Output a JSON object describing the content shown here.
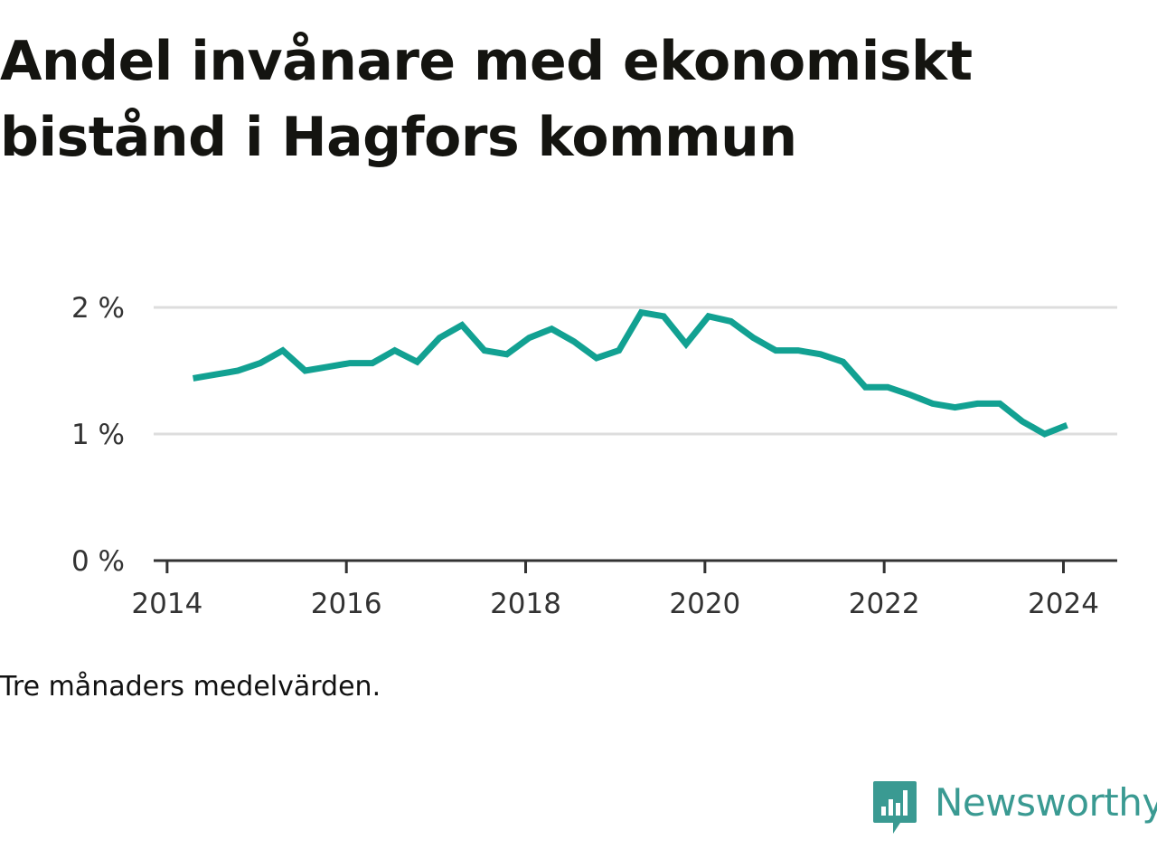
{
  "title": {
    "line1": "Andel invånare med ekonomiskt",
    "line2": "bistånd i Hagfors kommun"
  },
  "note": "Tre månaders medelvärden.",
  "brand": {
    "name": "Newsworthy",
    "icon": "bar-chart-speech-bubble-icon",
    "color": "#3a9a92"
  },
  "chart_data": {
    "type": "line",
    "title": "Andel invånare med ekonomiskt bistånd i Hagfors kommun",
    "xlabel": "",
    "ylabel": "",
    "y_ticks": [
      {
        "value": 0,
        "label": "0 %"
      },
      {
        "value": 1,
        "label": "1 %"
      },
      {
        "value": 2,
        "label": "2 %"
      }
    ],
    "x_ticks": [
      {
        "value": 2014,
        "label": "2014"
      },
      {
        "value": 2016,
        "label": "2016"
      },
      {
        "value": 2018,
        "label": "2018"
      },
      {
        "value": 2020,
        "label": "2020"
      },
      {
        "value": 2022,
        "label": "2022"
      },
      {
        "value": 2024,
        "label": "2024"
      }
    ],
    "xlim": [
      2013.85,
      2024.6
    ],
    "ylim": [
      0,
      2
    ],
    "grid": true,
    "line_color": "#12a192",
    "series": [
      {
        "x": [
          2014.29,
          2014.54,
          2014.79,
          2015.04,
          2015.29,
          2015.54,
          2015.79,
          2016.04,
          2016.29,
          2016.54,
          2016.79,
          2017.04,
          2017.29,
          2017.54,
          2017.79,
          2018.04,
          2018.29,
          2018.54,
          2018.79,
          2019.04,
          2019.29,
          2019.54,
          2019.79,
          2020.04,
          2020.29,
          2020.54,
          2020.79,
          2021.04,
          2021.29,
          2021.54,
          2021.79,
          2022.04,
          2022.29,
          2022.54,
          2022.79,
          2023.04,
          2023.29,
          2023.54,
          2023.79,
          2024.04
        ],
        "values": [
          1.44,
          1.47,
          1.5,
          1.56,
          1.66,
          1.5,
          1.53,
          1.56,
          1.56,
          1.66,
          1.57,
          1.76,
          1.86,
          1.66,
          1.63,
          1.76,
          1.83,
          1.73,
          1.6,
          1.66,
          1.96,
          1.93,
          1.71,
          1.93,
          1.89,
          1.76,
          1.66,
          1.66,
          1.63,
          1.57,
          1.37,
          1.37,
          1.31,
          1.24,
          1.21,
          1.24,
          1.24,
          1.1,
          1.0,
          1.07
        ]
      }
    ]
  }
}
